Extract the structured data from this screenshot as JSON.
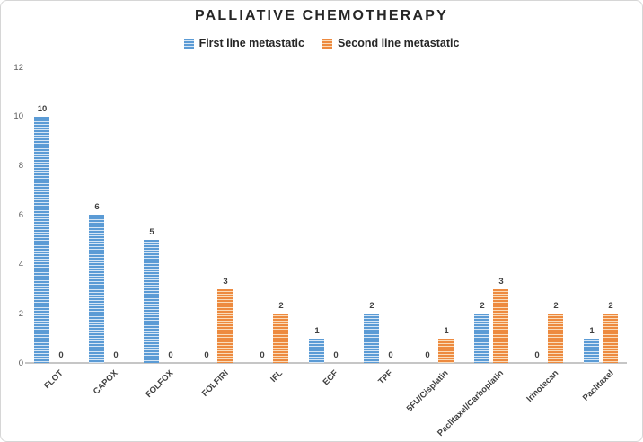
{
  "chart_data": {
    "type": "bar",
    "title": "PALLIATIVE CHEMOTHERAPY",
    "categories": [
      "FLOT",
      "CAPOX",
      "FOLFOX",
      "FOLFIRI",
      "IFL",
      "ECF",
      "TPF",
      "5FU/Cisplatin",
      "Paclitaxel/Carboplatin",
      "Irinotecan",
      "Paclitaxel"
    ],
    "series": [
      {
        "name": "First line metastatic",
        "color": "#5b9bd5",
        "stripe_light": "#d6e6f5",
        "values": [
          10,
          6,
          5,
          0,
          0,
          1,
          2,
          0,
          2,
          0,
          1
        ]
      },
      {
        "name": "Second line metastatic",
        "color": "#ed8a3f",
        "stripe_light": "#fadcba",
        "values": [
          0,
          0,
          0,
          3,
          2,
          0,
          0,
          1,
          3,
          2,
          2
        ]
      }
    ],
    "ylim": [
      0,
      12
    ],
    "yticks": [
      0,
      2,
      4,
      6,
      8,
      10,
      12
    ],
    "xlabel": "",
    "ylabel": "",
    "grid": false,
    "data_labels": true,
    "legend_position": "top",
    "colors": {
      "axis_line": "#c6c6c6",
      "title_text": "#262626",
      "label_text": "#404040",
      "ytick_text": "#595959",
      "frame_border": "#d6d6d6"
    }
  }
}
